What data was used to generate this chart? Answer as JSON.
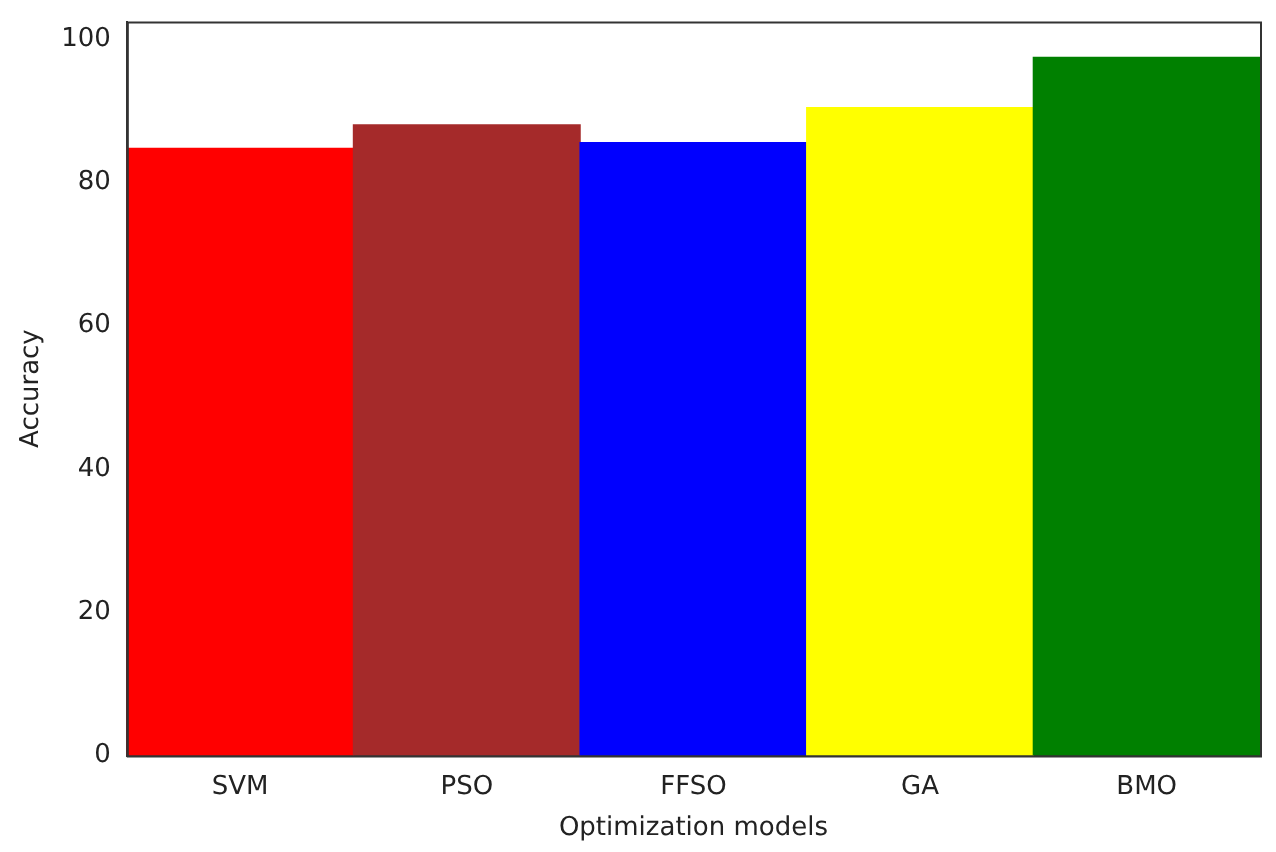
{
  "chart_data": {
    "type": "bar",
    "xlabel": "Optimization models",
    "ylabel": "Accuracy",
    "categories": [
      "SVM",
      "PSO",
      "FFSO",
      "GA",
      "BMO"
    ],
    "values": [
      84.7,
      88,
      85.5,
      90.4,
      97.4
    ],
    "colors": [
      "#ff0000",
      "#a52a2a",
      "#0000ff",
      "#ffff00",
      "#008000"
    ],
    "ylim": [
      0,
      102.4
    ],
    "yticks": [
      0,
      20,
      40,
      60,
      80,
      100
    ],
    "grid": false,
    "legend": false
  }
}
